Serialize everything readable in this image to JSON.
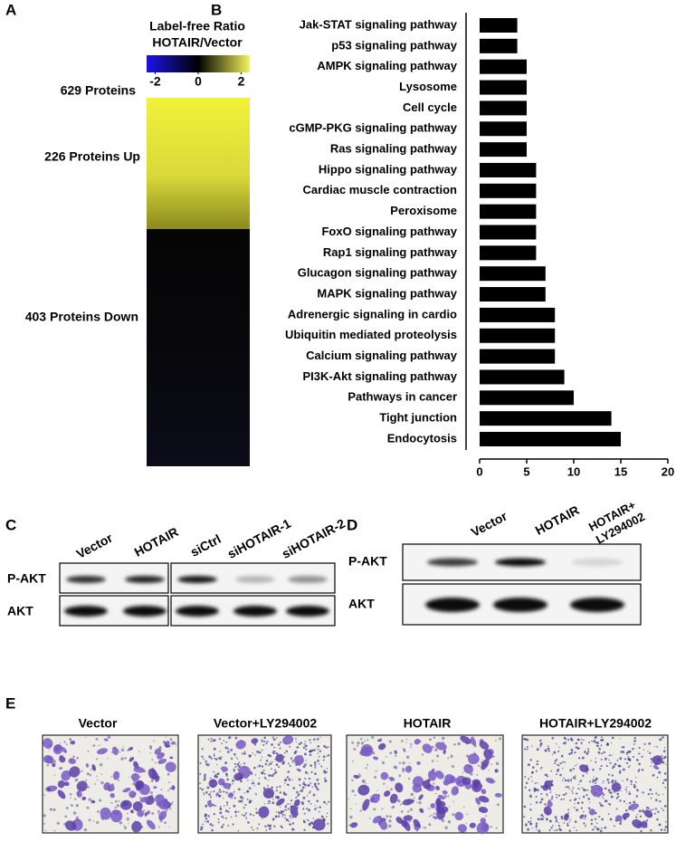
{
  "panel_labels": [
    "A",
    "B",
    "C",
    "D",
    "E"
  ],
  "panel_a": {
    "title_lines": [
      "Label-free Ratio",
      "HOTAIR/Vector"
    ],
    "colorbar_lim": [
      -2.4,
      2.4
    ],
    "colorbar_ticks": [
      -2,
      0,
      2
    ],
    "row_labels": [
      "629 Proteins",
      "226 Proteins Up",
      "403 Proteins Down"
    ]
  },
  "chart_data": {
    "type": "bar",
    "orientation": "horizontal",
    "categories": [
      "Jak-STAT signaling pathway",
      "p53 signaling pathway",
      "AMPK signaling pathway",
      "Lysosome",
      "Cell cycle",
      "cGMP-PKG signaling pathway",
      "Ras signaling pathway",
      "Hippo signaling pathway",
      "Cardiac muscle contraction",
      "Peroxisome",
      "FoxO signaling pathway",
      "Rap1 signaling pathway",
      "Glucagon signaling pathway",
      "MAPK signaling pathway",
      "Adrenergic signaling in cardio",
      "Ubiquitin mediated proteolysis",
      "Calcium signaling pathway",
      "PI3K-Akt signaling pathway",
      "Pathways in cancer",
      "Tight junction",
      "Endocytosis"
    ],
    "values": [
      4,
      4,
      5,
      5,
      5,
      5,
      5,
      6,
      6,
      6,
      6,
      6,
      7,
      7,
      8,
      8,
      8,
      9,
      10,
      14,
      15
    ],
    "color": "#000000",
    "xlim": [
      0,
      20
    ],
    "xticks": [
      0,
      5,
      10,
      15,
      20
    ]
  },
  "panel_c": {
    "lanes": [
      "Vector",
      "HOTAIR",
      "siCtrl",
      "siHOTAIR-1",
      "siHOTAIR-2"
    ],
    "rows": [
      "P-AKT",
      "AKT"
    ]
  },
  "panel_d": {
    "lanes": [
      [
        "Vector"
      ],
      [
        "HOTAIR"
      ],
      [
        "HOTAIR+",
        "LY294002"
      ]
    ],
    "rows": [
      "P-AKT",
      "AKT"
    ]
  },
  "panel_e": {
    "titles": [
      "Vector",
      "Vector+LY294002",
      "HOTAIR",
      "HOTAIR+LY294002"
    ]
  }
}
